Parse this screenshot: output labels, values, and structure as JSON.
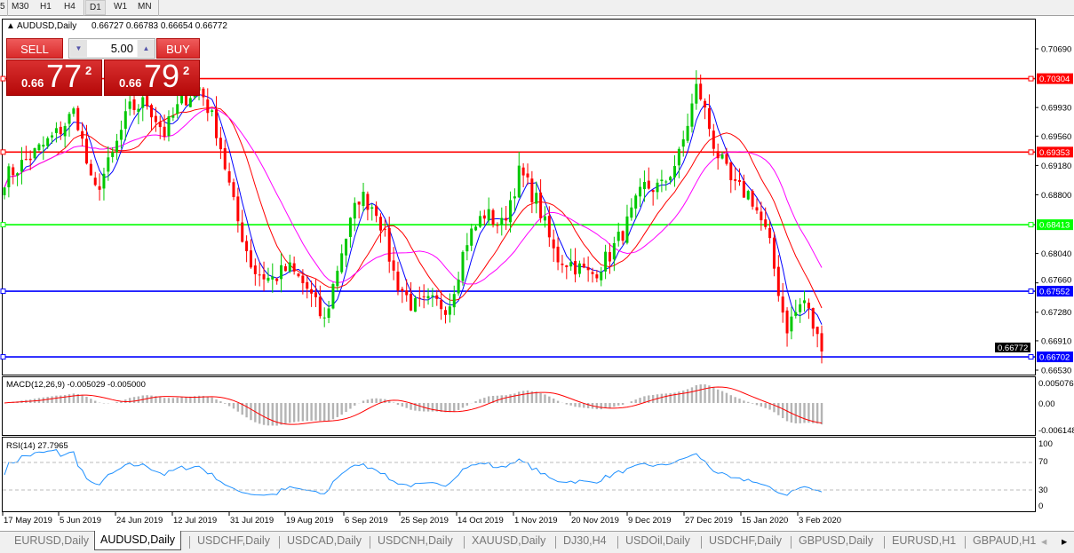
{
  "toolbar": {
    "timeframes": [
      "5",
      "M30",
      "H1",
      "H4",
      "D1",
      "W1",
      "MN"
    ],
    "selected": "D1"
  },
  "chart": {
    "symbol_label": "AUDUSD,Daily",
    "ohlc": "0.66727 0.66783 0.66654 0.66772",
    "price_ticks": [
      "0.70690",
      "0.69930",
      "0.69560",
      "0.69180",
      "0.68800",
      "0.68040",
      "0.67660",
      "0.67280",
      "0.66910",
      "0.66530"
    ],
    "price_tick_values": [
      0.7069,
      0.6993,
      0.6956,
      0.6918,
      0.688,
      0.6804,
      0.6766,
      0.6728,
      0.6691,
      0.6653
    ],
    "current_price": "0.66772",
    "levels": [
      {
        "label": "0.70304",
        "value": 0.70304,
        "color": "#ff0000"
      },
      {
        "label": "0.69353",
        "value": 0.69353,
        "color": "#ff0000"
      },
      {
        "label": "0.68413",
        "value": 0.68413,
        "color": "#00ff00"
      },
      {
        "label": "0.67552",
        "value": 0.67552,
        "color": "#0000ff"
      },
      {
        "label": "0.66702",
        "value": 0.66702,
        "color": "#0000ff"
      }
    ],
    "date_labels": [
      "17 May 2019",
      "5 Jun 2019",
      "24 Jun 2019",
      "12 Jul 2019",
      "31 Jul 2019",
      "19 Aug 2019",
      "6 Sep 2019",
      "25 Sep 2019",
      "14 Oct 2019",
      "1 Nov 2019",
      "20 Nov 2019",
      "9 Dec 2019",
      "27 Dec 2019",
      "15 Jan 2020",
      "3 Feb 2020"
    ],
    "approx_close_path": [
      0.6902,
      0.692,
      0.694,
      0.696,
      0.699,
      0.688,
      0.6925,
      0.699,
      0.7,
      0.696,
      0.7003,
      0.702,
      0.696,
      0.6856,
      0.6782,
      0.677,
      0.6785,
      0.676,
      0.6715,
      0.681,
      0.688,
      0.686,
      0.677,
      0.6735,
      0.674,
      0.6736,
      0.682,
      0.6856,
      0.684,
      0.691,
      0.687,
      0.68,
      0.679,
      0.6775,
      0.68,
      0.684,
      0.689,
      0.689,
      0.6931,
      0.7023,
      0.694,
      0.689,
      0.688,
      0.6822,
      0.6707,
      0.6745,
      0.6677
    ],
    "colors": {
      "bull": "#00c800",
      "bear": "#ff0000",
      "ma_fast": "#0000ff",
      "ma_mid": "#ff0000",
      "ma_slow": "#ff00ff"
    }
  },
  "trade_panel": {
    "sell_label": "SELL",
    "buy_label": "BUY",
    "lot": "5.00",
    "sell_prefix": "0.66",
    "sell_big": "77",
    "sell_sup": "2",
    "buy_prefix": "0.66",
    "buy_big": "79",
    "buy_sup": "2"
  },
  "macd": {
    "label": "MACD(12,26,9) -0.005029 -0.005000",
    "ticks": [
      "0.005076",
      "0.00",
      "-0.006148"
    ]
  },
  "rsi": {
    "label": "RSI(14) 27.7965",
    "ticks": [
      "100",
      "70",
      "30",
      "0"
    ]
  },
  "tabs": [
    "EURUSD,Daily",
    "AUDUSD,Daily",
    "USDCHF,Daily",
    "USDCAD,Daily",
    "USDCNH,Daily",
    "XAUUSD,Daily",
    "DJ30,H4",
    "USDOil,Daily",
    "USDCHF,Daily",
    "GBPUSD,Daily",
    "EURUSD,H1",
    "GBPAUD,H1"
  ],
  "active_tab": "AUDUSD,Daily"
}
